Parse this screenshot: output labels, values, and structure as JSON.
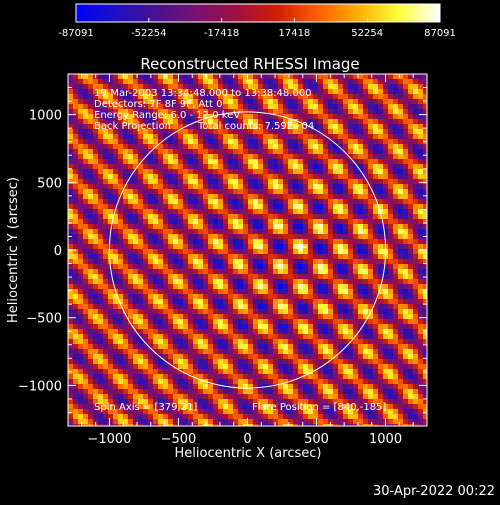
{
  "chart_data": {
    "type": "heatmap",
    "title": "Reconstructed RHESSI Image",
    "xlabel": "Heliocentric X (arcsec)",
    "ylabel": "Heliocentric Y (arcsec)",
    "xlim": [
      -1300,
      1300
    ],
    "ylim": [
      -1300,
      1300
    ],
    "xticks": [
      -1000,
      -500,
      0,
      500,
      1000
    ],
    "yticks": [
      -1000,
      -500,
      0,
      500,
      1000
    ],
    "colorbar": {
      "min": -87091,
      "max": 87091,
      "ticks": [
        "-87091",
        "-52254",
        "-17418",
        "17418",
        "52254",
        "87091"
      ],
      "colormap": [
        "#0000ff",
        "#2010c0",
        "#4a1090",
        "#7a1070",
        "#a01040",
        "#d02000",
        "#ff6000",
        "#ffb000",
        "#ffff40",
        "#ffffff"
      ]
    },
    "annotations": {
      "time_range": "19-Mar-2003 13:34:48.000 to 13:38:48.000",
      "detectors": "Detectors: 7F 8F 9F, Att 0",
      "energy": "Energy Range: 6.0 - 12.0 keV",
      "method": "Back Projection",
      "counts": "Total counts: 7.59E+04",
      "spin_axis": "Spin Axis = [379,21]",
      "flare_position": "Flare Position = [840,-185]"
    },
    "spin_axis": [
      379,
      21
    ],
    "solar_radius": 1000,
    "timestamp": "30-Apr-2022 00:22"
  }
}
